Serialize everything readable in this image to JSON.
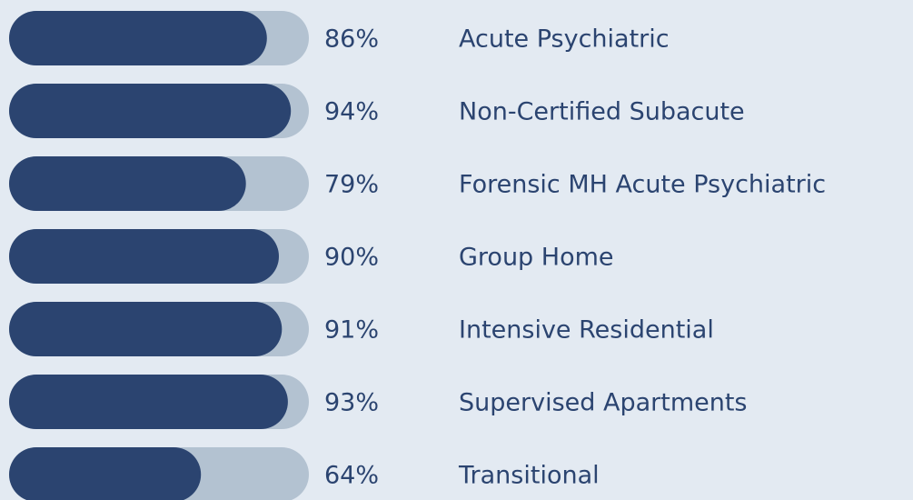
{
  "chart_data": {
    "type": "bar",
    "orientation": "horizontal",
    "categories": [
      "Acute Psychiatric",
      "Non-Certified Subacute",
      "Forensic MH Acute Psychiatric",
      "Group Home",
      "Intensive Residential",
      "Supervised Apartments",
      "Transitional"
    ],
    "values": [
      86,
      94,
      79,
      90,
      91,
      93,
      64
    ],
    "value_labels": [
      "86%",
      "94%",
      "79%",
      "90%",
      "91%",
      "93%",
      "64%"
    ],
    "xlim": [
      0,
      100
    ],
    "color": "#2b4470",
    "track_color": "#b3c2d1"
  }
}
